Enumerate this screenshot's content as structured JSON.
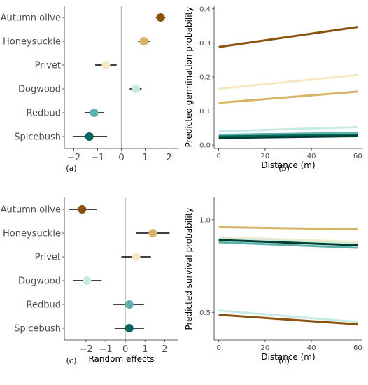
{
  "chart_data": [
    {
      "id": "a",
      "panel_label": "(a)",
      "type": "scatter",
      "subtype": "forest-plot",
      "orientation": "horizontal",
      "categories": [
        "Autumn olive",
        "Honeysuckle",
        "Privet",
        "Dogwood",
        "Redbud",
        "Spicebush"
      ],
      "points": [
        {
          "category": "Autumn olive",
          "estimate": 1.65,
          "lower": 1.45,
          "upper": 1.85,
          "color": "#8c510a"
        },
        {
          "category": "Honeysuckle",
          "estimate": 0.95,
          "lower": 0.7,
          "upper": 1.2,
          "color": "#d8b365"
        },
        {
          "category": "Privet",
          "estimate": -0.65,
          "lower": -1.1,
          "upper": -0.2,
          "color": "#f6e8c3"
        },
        {
          "category": "Dogwood",
          "estimate": 0.6,
          "lower": 0.35,
          "upper": 0.85,
          "color": "#c7eae5"
        },
        {
          "category": "Redbud",
          "estimate": -1.15,
          "lower": -1.55,
          "upper": -0.75,
          "color": "#5ab4ac"
        },
        {
          "category": "Spicebush",
          "estimate": -1.35,
          "lower": -2.05,
          "upper": -0.6,
          "color": "#01665e"
        }
      ],
      "xlim": [
        -2.4,
        2.4
      ],
      "xticks": [
        -2,
        -1,
        0,
        1,
        2
      ],
      "xlabel": "",
      "ylabel": "",
      "reference_line": 0,
      "grid": false
    },
    {
      "id": "b",
      "panel_label": "(b)",
      "type": "line",
      "xlabel": "Distance (m)",
      "ylabel": "Predicted germination probability",
      "xlim": [
        -2,
        62
      ],
      "ylim": [
        -0.01,
        0.41
      ],
      "xticks": [
        0,
        20,
        40,
        60
      ],
      "yticks": [
        0.0,
        0.1,
        0.2,
        0.3,
        0.4
      ],
      "ytick_labels": [
        "0.0",
        "0.1",
        "0.2",
        "0.3",
        "0.4"
      ],
      "grid": false,
      "series": [
        {
          "color": "#8c510a",
          "x": [
            0,
            60
          ],
          "values": [
            0.288,
            0.347
          ]
        },
        {
          "color": "#f6e8c3",
          "x": [
            0,
            60
          ],
          "values": [
            0.165,
            0.206
          ]
        },
        {
          "color": "#d8b365",
          "x": [
            0,
            60
          ],
          "values": [
            0.124,
            0.157
          ]
        },
        {
          "color": "#c7eae5",
          "x": [
            0,
            60
          ],
          "values": [
            0.04,
            0.053
          ]
        },
        {
          "color": "#5ab4ac",
          "x": [
            0,
            60
          ],
          "values": [
            0.03,
            0.036
          ]
        },
        {
          "color": "#01665e",
          "x": [
            0,
            60
          ],
          "values": [
            0.025,
            0.03
          ]
        },
        {
          "color": "#003c30",
          "x": [
            0,
            60
          ],
          "values": [
            0.021,
            0.026
          ]
        }
      ]
    },
    {
      "id": "c",
      "panel_label": "(c)",
      "type": "scatter",
      "subtype": "forest-plot",
      "orientation": "horizontal",
      "categories": [
        "Autumn olive",
        "Honeysuckle",
        "Privet",
        "Dogwood",
        "Redbud",
        "Spicebush"
      ],
      "points": [
        {
          "category": "Autumn olive",
          "estimate": -2.2,
          "lower": -2.85,
          "upper": -1.45,
          "color": "#8c510a"
        },
        {
          "category": "Honeysuckle",
          "estimate": 1.4,
          "lower": 0.55,
          "upper": 2.25,
          "color": "#d8b365"
        },
        {
          "category": "Privet",
          "estimate": 0.55,
          "lower": -0.2,
          "upper": 1.3,
          "color": "#f6e8c3"
        },
        {
          "category": "Dogwood",
          "estimate": -1.95,
          "lower": -2.65,
          "upper": -1.2,
          "color": "#c7eae5"
        },
        {
          "category": "Redbud",
          "estimate": 0.2,
          "lower": -0.6,
          "upper": 0.95,
          "color": "#5ab4ac"
        },
        {
          "category": "Spicebush",
          "estimate": 0.2,
          "lower": -0.55,
          "upper": 0.95,
          "color": "#01665e"
        }
      ],
      "xlim": [
        -3.1,
        2.7
      ],
      "xticks": [
        -2,
        -1,
        0,
        1,
        2
      ],
      "xlabel": "Random effects",
      "ylabel": "",
      "reference_line": 0,
      "grid": false
    },
    {
      "id": "d",
      "panel_label": "(d)",
      "type": "line",
      "xlabel": "Distance (m)",
      "ylabel": "Predicted survival probability",
      "xlim": [
        -2,
        62
      ],
      "ylim": [
        0.35,
        1.12
      ],
      "xticks": [
        0,
        20,
        40,
        60
      ],
      "yticks": [
        0.5,
        1.0
      ],
      "ytick_labels": [
        "0.5",
        "1.0"
      ],
      "grid": false,
      "series": [
        {
          "color": "#d8b365",
          "x": [
            0,
            60
          ],
          "values": [
            0.96,
            0.948
          ]
        },
        {
          "color": "#f6e8c3",
          "x": [
            0,
            60
          ],
          "values": [
            0.905,
            0.88
          ]
        },
        {
          "color": "#c7eae5",
          "x": [
            0,
            60
          ],
          "values": [
            0.898,
            0.87
          ]
        },
        {
          "color": "#5ab4ac",
          "x": [
            0,
            60
          ],
          "values": [
            0.878,
            0.848
          ]
        },
        {
          "color": "#003c30",
          "x": [
            0,
            60
          ],
          "values": [
            0.89,
            0.862
          ]
        },
        {
          "color": "#c7eae5",
          "x": [
            0,
            60
          ],
          "values": [
            0.51,
            0.448
          ]
        },
        {
          "color": "#8c510a",
          "x": [
            0,
            60
          ],
          "values": [
            0.487,
            0.435
          ]
        }
      ]
    }
  ]
}
